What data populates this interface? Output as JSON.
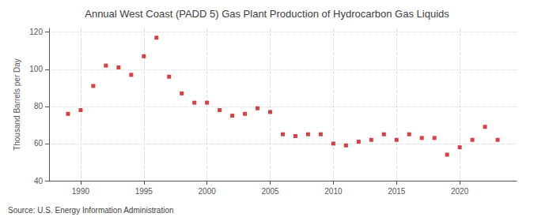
{
  "chart_data": {
    "type": "scatter",
    "title": "Annual West Coast (PADD 5) Gas Plant Production of Hydrocarbon Gas Liquids",
    "ylabel": "Thousand Barrels per Day",
    "annotations": [
      "Source: U.S. Energy Information Administration"
    ],
    "x": [
      1989,
      1990,
      1991,
      1992,
      1993,
      1994,
      1995,
      1996,
      1997,
      1998,
      1999,
      2000,
      2001,
      2002,
      2003,
      2004,
      2005,
      2006,
      2007,
      2008,
      2009,
      2010,
      2011,
      2012,
      2013,
      2014,
      2015,
      2016,
      2017,
      2018,
      2019,
      2020,
      2021,
      2022,
      2023
    ],
    "values": [
      76,
      78,
      91,
      102,
      101,
      97,
      107,
      117,
      96,
      87,
      82,
      82,
      78,
      75,
      76,
      79,
      77,
      65,
      64,
      65,
      65,
      60,
      59,
      61,
      62,
      65,
      62,
      65,
      63,
      63,
      54,
      58,
      62,
      69,
      62
    ],
    "color": "#cc1111",
    "marker": "square",
    "xlim": [
      1987.5,
      2024.5
    ],
    "ylim": [
      40,
      122
    ],
    "xticks": [
      1990,
      1995,
      2000,
      2005,
      2010,
      2015,
      2020
    ],
    "yticks": [
      40,
      60,
      80,
      100,
      120
    ],
    "grid": true
  }
}
